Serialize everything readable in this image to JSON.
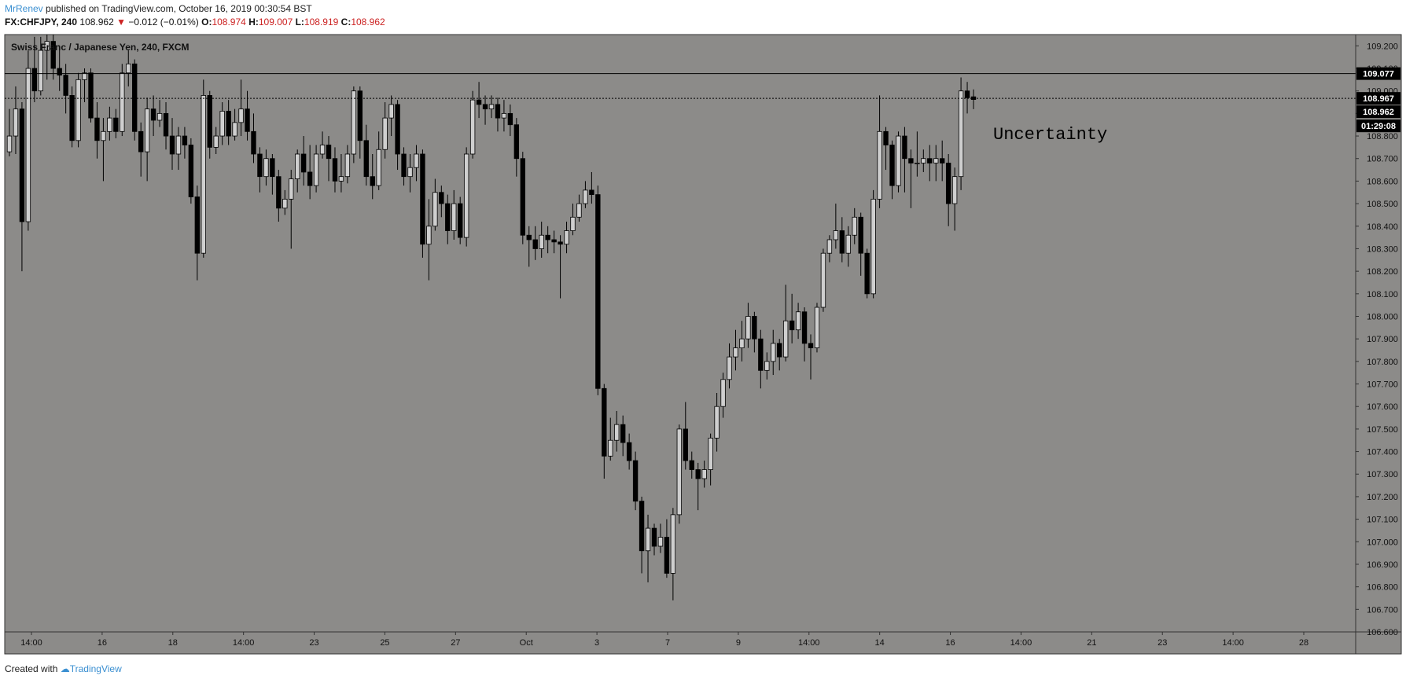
{
  "header": {
    "author": "MrRenev",
    "published_text": "published on TradingView.com, October 16, 2019 00:30:54 BST",
    "symbol": "FX:CHFJPY, 240",
    "last": "108.962",
    "change": "−0.012 (−0.01%)",
    "ohlc": {
      "o_label": "O:",
      "o": "108.974",
      "h_label": "H:",
      "h": "109.007",
      "l_label": "L:",
      "l": "108.919",
      "c_label": "C:",
      "c": "108.962"
    }
  },
  "footer": {
    "created_with": "Created with",
    "brand": "TradingView"
  },
  "chart_data": {
    "type": "candlestick",
    "title": "Swiss Franc / Japanese Yen, 240, FXCM",
    "annotation": "Uncertainty",
    "ylim": [
      106.6,
      109.25
    ],
    "y_ticks": [
      "109.200",
      "109.100",
      "109.000",
      "108.900",
      "108.800",
      "108.700",
      "108.600",
      "108.500",
      "108.400",
      "108.300",
      "108.200",
      "108.100",
      "108.000",
      "107.900",
      "107.800",
      "107.700",
      "107.600",
      "107.500",
      "107.400",
      "107.300",
      "107.200",
      "107.100",
      "107.000",
      "106.900",
      "106.800",
      "106.700",
      "106.600"
    ],
    "x_ticks": [
      "14:00",
      "16",
      "18",
      "14:00",
      "23",
      "25",
      "27",
      "Oct",
      "3",
      "7",
      "9",
      "14:00",
      "14",
      "16",
      "14:00",
      "21",
      "23",
      "14:00",
      "28"
    ],
    "price_labels": [
      {
        "price": 109.077,
        "text": "109.077",
        "style": "line"
      },
      {
        "price": 108.967,
        "text": "108.967",
        "style": "dotted"
      },
      {
        "price": 108.962,
        "text": "108.962",
        "style": "last"
      }
    ],
    "countdown": "01:29:08",
    "candles": [
      [
        108.73,
        108.8,
        108.92,
        108.71
      ],
      [
        108.8,
        108.92,
        109.02,
        108.72
      ],
      [
        108.92,
        108.42,
        108.95,
        108.2
      ],
      [
        108.42,
        109.1,
        109.18,
        108.38
      ],
      [
        109.1,
        109.0,
        109.24,
        108.95
      ],
      [
        109.0,
        109.18,
        109.24,
        108.98
      ],
      [
        109.18,
        109.22,
        109.25,
        109.05
      ],
      [
        109.22,
        109.1,
        109.25,
        109.05
      ],
      [
        109.1,
        109.07,
        109.2,
        109.0
      ],
      [
        109.07,
        108.98,
        109.12,
        108.9
      ],
      [
        108.98,
        108.78,
        109.02,
        108.75
      ],
      [
        108.78,
        109.05,
        109.08,
        108.75
      ],
      [
        109.05,
        109.08,
        109.1,
        108.95
      ],
      [
        109.08,
        108.88,
        109.1,
        108.86
      ],
      [
        108.88,
        108.78,
        108.95,
        108.7
      ],
      [
        108.78,
        108.82,
        108.88,
        108.6
      ],
      [
        108.82,
        108.88,
        108.93,
        108.78
      ],
      [
        108.88,
        108.82,
        108.92,
        108.79
      ],
      [
        108.82,
        109.08,
        109.12,
        108.8
      ],
      [
        109.08,
        109.12,
        109.18,
        109.02
      ],
      [
        109.12,
        108.82,
        109.14,
        108.78
      ],
      [
        108.82,
        108.73,
        108.86,
        108.62
      ],
      [
        108.73,
        108.92,
        108.97,
        108.6
      ],
      [
        108.92,
        108.87,
        108.98,
        108.8
      ],
      [
        108.87,
        108.9,
        108.96,
        108.84
      ],
      [
        108.9,
        108.8,
        108.95,
        108.74
      ],
      [
        108.8,
        108.72,
        108.88,
        108.65
      ],
      [
        108.72,
        108.8,
        108.84,
        108.65
      ],
      [
        108.8,
        108.76,
        108.84,
        108.7
      ],
      [
        108.76,
        108.53,
        108.79,
        108.5
      ],
      [
        108.53,
        108.28,
        108.58,
        108.16
      ],
      [
        108.28,
        108.98,
        109.05,
        108.26
      ],
      [
        108.98,
        108.75,
        109.0,
        108.7
      ],
      [
        108.75,
        108.8,
        108.84,
        108.72
      ],
      [
        108.8,
        108.91,
        108.95,
        108.76
      ],
      [
        108.91,
        108.8,
        108.96,
        108.76
      ],
      [
        108.8,
        108.86,
        108.92,
        108.78
      ],
      [
        108.86,
        108.92,
        109.05,
        108.8
      ],
      [
        108.92,
        108.82,
        109.0,
        108.78
      ],
      [
        108.82,
        108.72,
        108.9,
        108.68
      ],
      [
        108.72,
        108.62,
        108.75,
        108.55
      ],
      [
        108.62,
        108.7,
        108.74,
        108.58
      ],
      [
        108.7,
        108.62,
        108.72,
        108.54
      ],
      [
        108.62,
        108.48,
        108.65,
        108.42
      ],
      [
        108.48,
        108.52,
        108.56,
        108.45
      ],
      [
        108.52,
        108.61,
        108.65,
        108.3
      ],
      [
        108.61,
        108.72,
        108.74,
        108.55
      ],
      [
        108.72,
        108.64,
        108.8,
        108.58
      ],
      [
        108.64,
        108.58,
        108.76,
        108.52
      ],
      [
        108.58,
        108.72,
        108.76,
        108.55
      ],
      [
        108.72,
        108.76,
        108.82,
        108.7
      ],
      [
        108.76,
        108.7,
        108.8,
        108.6
      ],
      [
        108.7,
        108.6,
        108.75,
        108.55
      ],
      [
        108.6,
        108.62,
        108.72,
        108.55
      ],
      [
        108.62,
        108.72,
        108.76,
        108.59
      ],
      [
        108.72,
        109.0,
        109.02,
        108.68
      ],
      [
        109.0,
        108.78,
        109.02,
        108.7
      ],
      [
        108.78,
        108.62,
        108.85,
        108.58
      ],
      [
        108.62,
        108.58,
        108.72,
        108.52
      ],
      [
        108.58,
        108.74,
        108.82,
        108.56
      ],
      [
        108.74,
        108.88,
        108.95,
        108.7
      ],
      [
        108.88,
        108.94,
        108.98,
        108.8
      ],
      [
        108.94,
        108.72,
        108.96,
        108.65
      ],
      [
        108.72,
        108.62,
        108.75,
        108.58
      ],
      [
        108.62,
        108.66,
        108.72,
        108.55
      ],
      [
        108.66,
        108.72,
        108.76,
        108.6
      ],
      [
        108.72,
        108.32,
        108.74,
        108.26
      ],
      [
        108.32,
        108.4,
        108.52,
        108.16
      ],
      [
        108.4,
        108.55,
        108.61,
        108.38
      ],
      [
        108.55,
        108.5,
        108.58,
        108.44
      ],
      [
        108.5,
        108.38,
        108.54,
        108.32
      ],
      [
        108.38,
        108.5,
        108.56,
        108.34
      ],
      [
        108.5,
        108.35,
        108.53,
        108.32
      ],
      [
        108.35,
        108.72,
        108.75,
        108.31
      ],
      [
        108.72,
        108.96,
        109.0,
        108.7
      ],
      [
        108.96,
        108.94,
        109.04,
        108.88
      ],
      [
        108.94,
        108.92,
        108.98,
        108.85
      ],
      [
        108.92,
        108.94,
        108.98,
        108.88
      ],
      [
        108.94,
        108.88,
        108.97,
        108.82
      ],
      [
        108.88,
        108.9,
        108.96,
        108.82
      ],
      [
        108.9,
        108.85,
        108.94,
        108.8
      ],
      [
        108.85,
        108.7,
        108.88,
        108.62
      ],
      [
        108.7,
        108.36,
        108.73,
        108.32
      ],
      [
        108.36,
        108.34,
        108.4,
        108.22
      ],
      [
        108.34,
        108.3,
        108.4,
        108.25
      ],
      [
        108.3,
        108.36,
        108.42,
        108.26
      ],
      [
        108.36,
        108.34,
        108.4,
        108.28
      ],
      [
        108.34,
        108.33,
        108.38,
        108.28
      ],
      [
        108.33,
        108.32,
        108.36,
        108.08
      ],
      [
        108.32,
        108.38,
        108.42,
        108.28
      ],
      [
        108.38,
        108.44,
        108.5,
        108.36
      ],
      [
        108.44,
        108.5,
        108.54,
        108.42
      ],
      [
        108.5,
        108.56,
        108.6,
        108.48
      ],
      [
        108.56,
        108.54,
        108.64,
        108.5
      ],
      [
        108.54,
        107.68,
        108.58,
        107.65
      ],
      [
        107.68,
        107.38,
        107.7,
        107.28
      ],
      [
        107.38,
        107.45,
        107.55,
        107.36
      ],
      [
        107.45,
        107.52,
        107.58,
        107.4
      ],
      [
        107.52,
        107.44,
        107.56,
        107.38
      ],
      [
        107.44,
        107.36,
        107.48,
        107.32
      ],
      [
        107.36,
        107.18,
        107.4,
        107.14
      ],
      [
        107.18,
        106.96,
        107.2,
        106.86
      ],
      [
        106.96,
        107.06,
        107.12,
        106.82
      ],
      [
        107.06,
        106.98,
        107.08,
        106.94
      ],
      [
        106.98,
        107.02,
        107.08,
        106.95
      ],
      [
        107.02,
        106.86,
        107.1,
        106.84
      ],
      [
        106.86,
        107.12,
        107.15,
        106.74
      ],
      [
        107.12,
        107.5,
        107.52,
        107.08
      ],
      [
        107.5,
        107.36,
        107.62,
        107.32
      ],
      [
        107.36,
        107.32,
        107.4,
        107.28
      ],
      [
        107.32,
        107.28,
        107.35,
        107.14
      ],
      [
        107.28,
        107.32,
        107.36,
        107.24
      ],
      [
        107.32,
        107.46,
        107.48,
        107.25
      ],
      [
        107.46,
        107.6,
        107.66,
        107.4
      ],
      [
        107.6,
        107.72,
        107.75,
        107.55
      ],
      [
        107.72,
        107.82,
        107.88,
        107.68
      ],
      [
        107.82,
        107.86,
        107.94,
        107.76
      ],
      [
        107.86,
        107.9,
        107.98,
        107.8
      ],
      [
        107.9,
        108.0,
        108.06,
        107.86
      ],
      [
        108.0,
        107.9,
        108.02,
        107.84
      ],
      [
        107.9,
        107.76,
        107.94,
        107.68
      ],
      [
        107.76,
        107.8,
        107.84,
        107.72
      ],
      [
        107.8,
        107.88,
        107.94,
        107.74
      ],
      [
        107.88,
        107.82,
        107.9,
        107.76
      ],
      [
        107.82,
        107.98,
        108.14,
        107.8
      ],
      [
        107.98,
        107.94,
        108.1,
        107.88
      ],
      [
        107.94,
        108.02,
        108.06,
        107.9
      ],
      [
        108.02,
        107.88,
        108.04,
        107.8
      ],
      [
        107.88,
        107.86,
        107.92,
        107.72
      ],
      [
        107.86,
        108.04,
        108.06,
        107.84
      ],
      [
        108.04,
        108.28,
        108.3,
        108.02
      ],
      [
        108.28,
        108.34,
        108.36,
        108.24
      ],
      [
        108.34,
        108.38,
        108.5,
        108.3
      ],
      [
        108.38,
        108.28,
        108.44,
        108.24
      ],
      [
        108.28,
        108.36,
        108.4,
        108.22
      ],
      [
        108.36,
        108.44,
        108.48,
        108.32
      ],
      [
        108.44,
        108.28,
        108.46,
        108.18
      ],
      [
        108.28,
        108.1,
        108.3,
        108.08
      ],
      [
        108.1,
        108.52,
        108.56,
        108.08
      ],
      [
        108.52,
        108.82,
        108.98,
        108.48
      ],
      [
        108.82,
        108.76,
        108.84,
        108.65
      ],
      [
        108.76,
        108.58,
        108.78,
        108.52
      ],
      [
        108.58,
        108.8,
        108.82,
        108.55
      ],
      [
        108.8,
        108.7,
        108.84,
        108.55
      ],
      [
        108.7,
        108.68,
        108.74,
        108.48
      ],
      [
        108.68,
        108.68,
        108.82,
        108.62
      ],
      [
        108.68,
        108.7,
        108.74,
        108.64
      ],
      [
        108.7,
        108.68,
        108.76,
        108.6
      ],
      [
        108.68,
        108.7,
        108.76,
        108.6
      ],
      [
        108.7,
        108.68,
        108.78,
        108.6
      ],
      [
        108.68,
        108.5,
        108.72,
        108.4
      ],
      [
        108.5,
        108.62,
        108.66,
        108.38
      ],
      [
        108.62,
        109.0,
        109.06,
        108.56
      ],
      [
        109.0,
        108.97,
        109.04,
        108.9
      ],
      [
        108.974,
        108.962,
        109.007,
        108.919
      ]
    ]
  }
}
